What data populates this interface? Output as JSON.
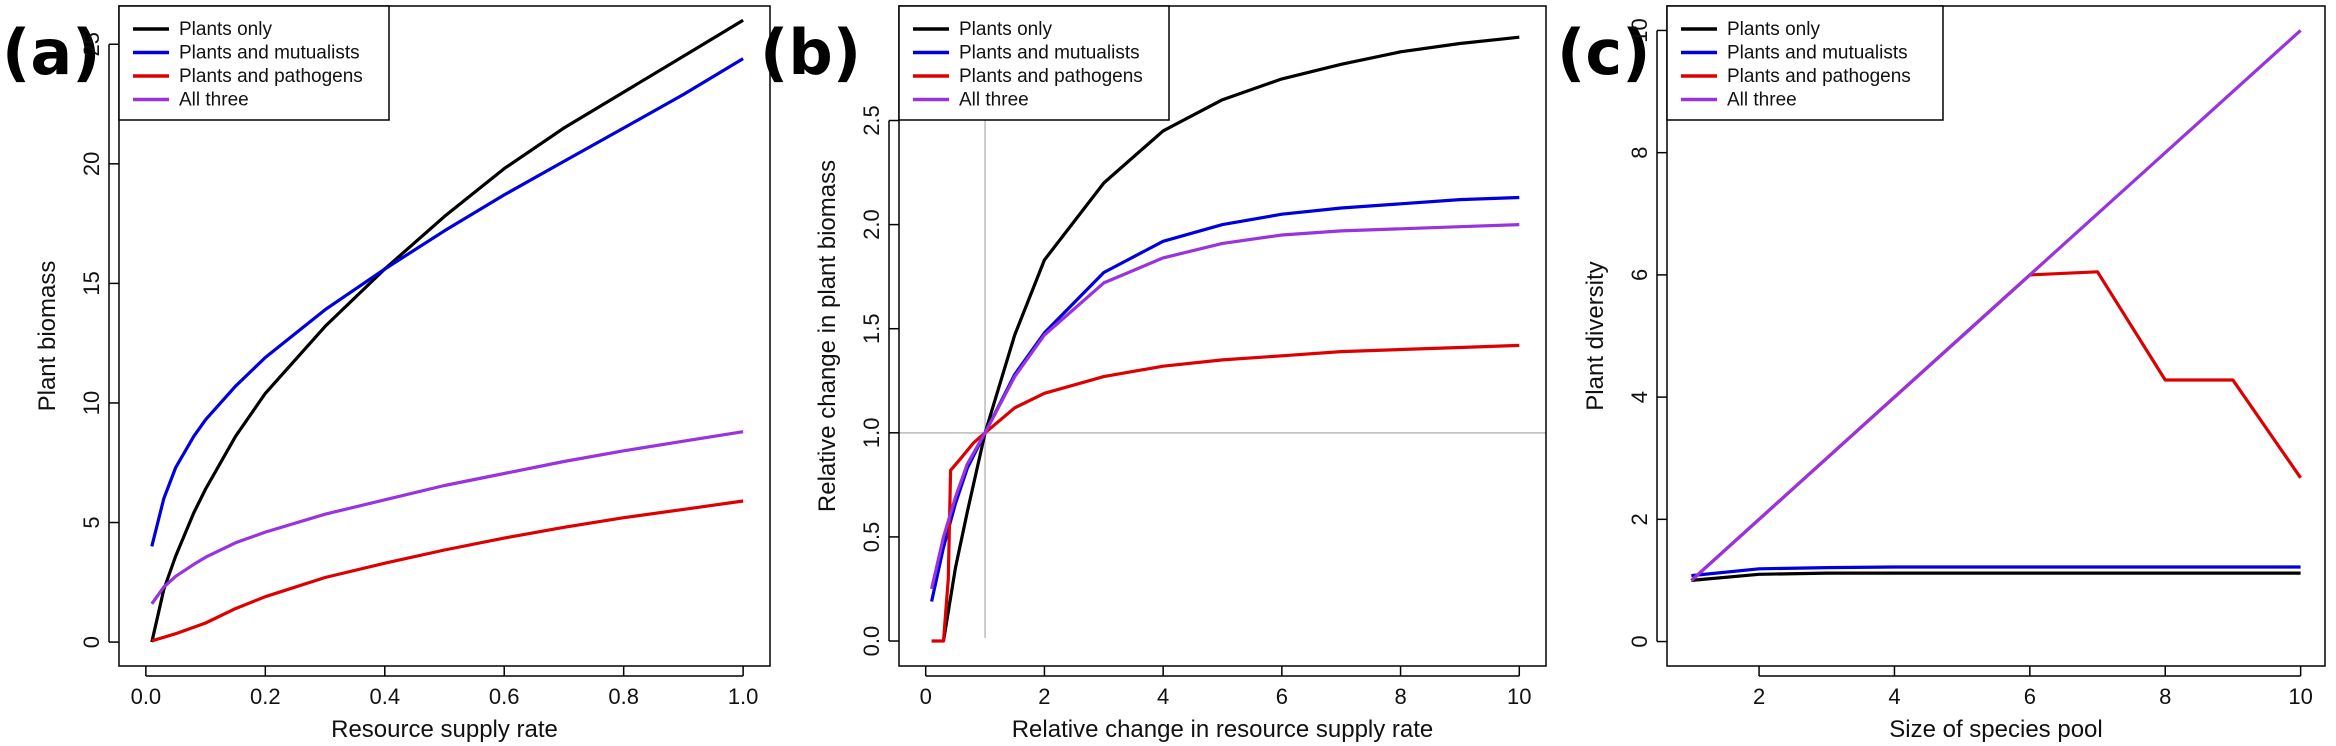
{
  "chart_data": [
    {
      "type": "line",
      "panel_label": "(a)",
      "xlabel": "Resource supply rate",
      "ylabel": "Plant biomass",
      "xlim": [
        -0.045,
        1.045
      ],
      "ylim": [
        -1,
        26.6
      ],
      "xticks": [
        0.0,
        0.2,
        0.4,
        0.6,
        0.8,
        1.0
      ],
      "xtick_labels": [
        "0.0",
        "0.2",
        "0.4",
        "0.6",
        "0.8",
        "1.0"
      ],
      "yticks": [
        0,
        5,
        10,
        15,
        20,
        25
      ],
      "ytick_labels": [
        "0",
        "5",
        "10",
        "15",
        "20",
        "25"
      ],
      "legend_position": "top-left",
      "grid": false,
      "series": [
        {
          "name": "Plants only",
          "color": "#000000",
          "x": [
            0.01,
            0.03,
            0.05,
            0.08,
            0.1,
            0.15,
            0.2,
            0.3,
            0.4,
            0.5,
            0.6,
            0.7,
            0.8,
            0.9,
            1.0
          ],
          "y": [
            0.0,
            2.2,
            3.6,
            5.4,
            6.4,
            8.6,
            10.4,
            13.2,
            15.6,
            17.8,
            19.8,
            21.5,
            23.0,
            24.5,
            26.0
          ]
        },
        {
          "name": "Plants and mutualists",
          "color": "#0000dd",
          "x": [
            0.01,
            0.03,
            0.05,
            0.08,
            0.1,
            0.15,
            0.2,
            0.3,
            0.4,
            0.5,
            0.6,
            0.7,
            0.8,
            0.9,
            1.0
          ],
          "y": [
            4.0,
            6.0,
            7.3,
            8.6,
            9.3,
            10.7,
            11.9,
            13.9,
            15.6,
            17.2,
            18.7,
            20.1,
            21.5,
            22.9,
            24.4
          ]
        },
        {
          "name": "Plants and pathogens",
          "color": "#dd0000",
          "x": [
            0.01,
            0.05,
            0.1,
            0.15,
            0.2,
            0.3,
            0.4,
            0.5,
            0.6,
            0.7,
            0.8,
            0.9,
            1.0
          ],
          "y": [
            0.05,
            0.35,
            0.8,
            1.4,
            1.9,
            2.7,
            3.3,
            3.85,
            4.35,
            4.8,
            5.2,
            5.55,
            5.9
          ]
        },
        {
          "name": "All three",
          "color": "#9933dd",
          "x": [
            0.01,
            0.03,
            0.05,
            0.08,
            0.1,
            0.15,
            0.2,
            0.3,
            0.4,
            0.5,
            0.6,
            0.7,
            0.8,
            0.9,
            1.0
          ],
          "y": [
            1.6,
            2.3,
            2.75,
            3.25,
            3.55,
            4.15,
            4.6,
            5.35,
            5.95,
            6.55,
            7.05,
            7.55,
            8.0,
            8.4,
            8.8
          ]
        }
      ],
      "hlines": [],
      "vlines": []
    },
    {
      "type": "line",
      "panel_label": "(b)",
      "xlabel": "Relative change in resource supply rate",
      "ylabel": "Relative change in plant biomass",
      "xlim": [
        -0.45,
        10.45
      ],
      "ylim": [
        -0.12,
        3.05
      ],
      "xticks": [
        0,
        2,
        4,
        6,
        8,
        10
      ],
      "xtick_labels": [
        "0",
        "2",
        "4",
        "6",
        "8",
        "10"
      ],
      "yticks": [
        0.0,
        0.5,
        1.0,
        1.5,
        2.0,
        2.5
      ],
      "ytick_labels": [
        "0.0",
        "0.5",
        "1.0",
        "1.5",
        "2.0",
        "2.5"
      ],
      "legend_position": "top-left",
      "grid": false,
      "series": [
        {
          "name": "Plants only",
          "color": "#000000",
          "x": [
            0.3,
            0.5,
            0.7,
            1.0,
            1.5,
            2.0,
            3.0,
            4.0,
            5.0,
            6.0,
            7.0,
            8.0,
            9.0,
            10.0
          ],
          "y": [
            0.0,
            0.35,
            0.62,
            1.0,
            1.47,
            1.83,
            2.2,
            2.45,
            2.6,
            2.7,
            2.77,
            2.83,
            2.87,
            2.9
          ]
        },
        {
          "name": "Plants and mutualists",
          "color": "#0000dd",
          "x": [
            0.1,
            0.3,
            0.5,
            0.7,
            1.0,
            1.5,
            2.0,
            3.0,
            4.0,
            5.0,
            6.0,
            7.0,
            8.0,
            9.0,
            10.0
          ],
          "y": [
            0.19,
            0.45,
            0.66,
            0.83,
            1.0,
            1.28,
            1.48,
            1.77,
            1.92,
            2.0,
            2.05,
            2.08,
            2.1,
            2.12,
            2.13
          ]
        },
        {
          "name": "Plants and pathogens",
          "color": "#dd0000",
          "x": [
            0.1,
            0.3,
            0.38,
            0.42,
            0.6,
            0.8,
            1.0,
            1.5,
            2.0,
            3.0,
            4.0,
            5.0,
            6.0,
            7.0,
            8.0,
            9.0,
            10.0
          ],
          "y": [
            0.0,
            0.0,
            0.3,
            0.82,
            0.88,
            0.95,
            1.0,
            1.12,
            1.19,
            1.27,
            1.32,
            1.35,
            1.37,
            1.39,
            1.4,
            1.41,
            1.42
          ]
        },
        {
          "name": "All three",
          "color": "#9933dd",
          "x": [
            0.1,
            0.3,
            0.5,
            0.7,
            1.0,
            1.5,
            2.0,
            3.0,
            4.0,
            5.0,
            6.0,
            7.0,
            8.0,
            9.0,
            10.0
          ],
          "y": [
            0.25,
            0.5,
            0.69,
            0.85,
            1.0,
            1.27,
            1.47,
            1.72,
            1.84,
            1.91,
            1.95,
            1.97,
            1.98,
            1.99,
            2.0
          ]
        }
      ],
      "hlines": [
        {
          "y": 1.0,
          "color": "#bbbbbb"
        }
      ],
      "vlines": [
        {
          "x": 1.0,
          "color": "#bbbbbb"
        }
      ]
    },
    {
      "type": "line",
      "panel_label": "(c)",
      "xlabel": "Size of species pool",
      "ylabel": "Plant diversity",
      "xlim": [
        0.64,
        10.36
      ],
      "ylim": [
        -0.4,
        10.4
      ],
      "xticks": [
        2,
        4,
        6,
        8,
        10
      ],
      "xtick_labels": [
        "2",
        "4",
        "6",
        "8",
        "10"
      ],
      "yticks": [
        0,
        2,
        4,
        6,
        8,
        10
      ],
      "ytick_labels": [
        "0",
        "2",
        "4",
        "6",
        "8",
        "10"
      ],
      "legend_position": "top-left",
      "grid": false,
      "series": [
        {
          "name": "Plants only",
          "color": "#000000",
          "x": [
            1,
            2,
            3,
            4,
            5,
            6,
            7,
            8,
            9,
            10
          ],
          "y": [
            1.0,
            1.1,
            1.12,
            1.12,
            1.12,
            1.12,
            1.12,
            1.12,
            1.12,
            1.12
          ]
        },
        {
          "name": "Plants and mutualists",
          "color": "#0000dd",
          "x": [
            1,
            2,
            3,
            4,
            5,
            6,
            7,
            8,
            9,
            10
          ],
          "y": [
            1.08,
            1.19,
            1.21,
            1.22,
            1.22,
            1.22,
            1.22,
            1.22,
            1.22,
            1.22
          ]
        },
        {
          "name": "Plants and pathogens",
          "color": "#dd0000",
          "x": [
            1,
            2,
            3,
            4,
            5,
            6,
            7,
            8,
            9,
            10
          ],
          "y": [
            1,
            2,
            3,
            4,
            5,
            6,
            6.05,
            4.28,
            4.28,
            2.68
          ]
        },
        {
          "name": "All three",
          "color": "#9933dd",
          "x": [
            1,
            2,
            3,
            4,
            5,
            6,
            7,
            8,
            9,
            10
          ],
          "y": [
            1,
            2,
            3,
            4,
            5,
            6,
            7,
            8,
            9,
            10
          ]
        }
      ],
      "hlines": [],
      "vlines": []
    }
  ]
}
